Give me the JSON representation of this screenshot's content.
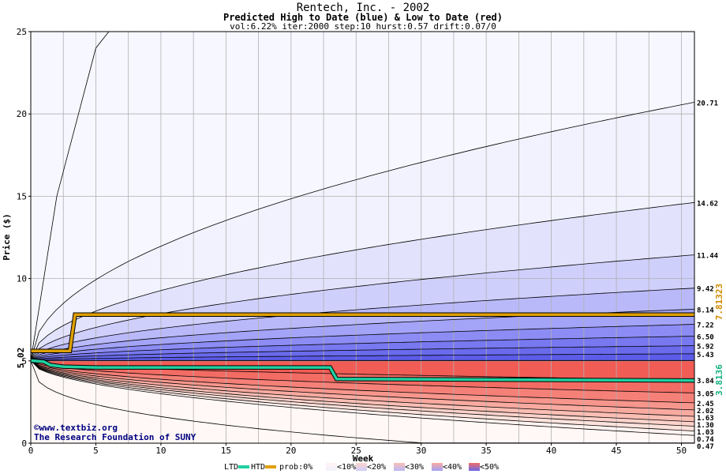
{
  "chart_data": {
    "type": "area",
    "title": "Rentech, Inc. - 2002",
    "subtitle": "Predicted High to Date (blue) &  Low to Date (red)",
    "params": "vol:6.22% iter:2000 step:10 hurst:0.57 drift:0.07/0",
    "xlabel": "Week",
    "ylabel": "Price ($)",
    "xlim": [
      0,
      51
    ],
    "ylim": [
      0,
      25
    ],
    "xticks": [
      0,
      5,
      10,
      15,
      20,
      25,
      30,
      35,
      40,
      45,
      50
    ],
    "yticks": [
      0,
      5,
      10,
      15,
      20,
      25
    ],
    "start_price": 5.02,
    "start_label": "5.02",
    "high_quantiles": [
      20.71,
      14.62,
      11.44,
      9.42,
      8.14,
      7.22,
      6.5,
      5.92,
      5.43
    ],
    "high_labels": [
      "20.71",
      "14.62",
      "11.44",
      "9.42",
      "8.14",
      "7.22",
      "6.50",
      "5.92",
      "5.43"
    ],
    "low_quantiles": [
      3.84,
      3.05,
      2.45,
      2.02,
      1.63,
      1.3,
      1.03,
      0.74,
      0.47
    ],
    "low_labels": [
      "3.84",
      "3.05",
      "2.45",
      "2.02",
      "1.63",
      "1.30",
      "1.03",
      "0.74",
      "0.47"
    ],
    "htd_series": {
      "name": "HTD",
      "color": "#e0a000",
      "final_label": "7.81323",
      "x": [
        0,
        3,
        3.4,
        51
      ],
      "y": [
        5.6,
        5.6,
        7.81,
        7.81
      ]
    },
    "ltd_series": {
      "name": "LTD",
      "color": "#20d0a0",
      "final_label": "3.8136",
      "x": [
        0,
        1,
        1.5,
        2.5,
        5,
        23,
        23.5,
        51
      ],
      "y": [
        5.02,
        4.95,
        4.75,
        4.65,
        4.6,
        4.6,
        3.9,
        3.81
      ]
    },
    "band_colors": {
      "blue": [
        "#f2f2fe",
        "#e2e2fd",
        "#cfcffc",
        "#b9b9fa",
        "#a3a3f8",
        "#8c8cf4",
        "#7878f0",
        "#6a6aec",
        "#5c5ce8"
      ],
      "red": [
        "#fff3f0",
        "#fee2dc",
        "#fdd2ca",
        "#fbbeb4",
        "#f9aaa0",
        "#f7968c",
        "#f58078",
        "#f36c64",
        "#f15c54"
      ]
    },
    "grid": true
  },
  "watermark": {
    "line1": "©www.textbiz.org",
    "line2": "The Research Foundation of SUNY"
  },
  "legend": {
    "ltd": "LTD",
    "htd": "HTD",
    "prob": "prob:0%",
    "p10": "<10%",
    "p20": "<20%",
    "p30": "<30%",
    "p40": "<40%",
    "p50": "<50%",
    "colors": {
      "p10a": "#fff3f0",
      "p10b": "#f2f2fe",
      "p20a": "#fdd2ca",
      "p20b": "#cfcffc",
      "p30a": "#fbbeb4",
      "p30b": "#b9b9fa",
      "p40a": "#f9aaa0",
      "p40b": "#a3a3f8",
      "p50a": "#f36c64",
      "p50b": "#6a6aec"
    }
  }
}
